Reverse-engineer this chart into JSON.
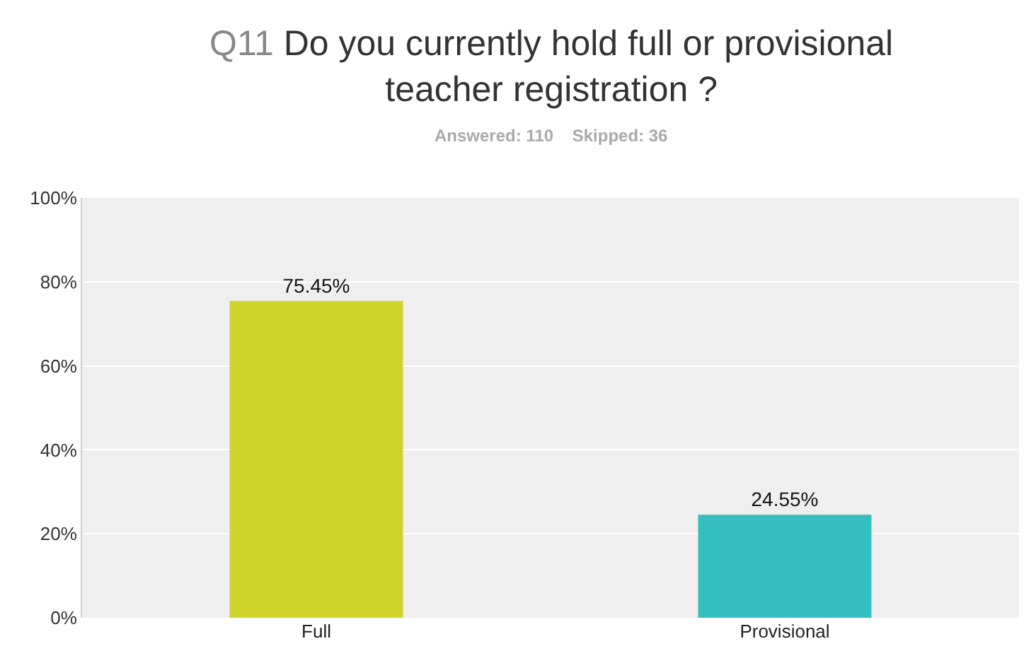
{
  "chart_data": {
    "type": "bar",
    "title": "Q11 Do you currently hold full or provisional teacher registration ?",
    "subtitle": "Answered: 110    Skipped: 36",
    "categories": [
      "Full",
      "Provisional"
    ],
    "values": [
      75.45,
      24.55
    ],
    "colors": [
      "#d0d32a",
      "#33bfc0"
    ],
    "value_labels": [
      "75.45%",
      "24.55%"
    ],
    "ylim": [
      0,
      100
    ],
    "yticks": [
      {
        "value": 0,
        "label": "0%"
      },
      {
        "value": 20,
        "label": "20%"
      },
      {
        "value": 40,
        "label": "40%"
      },
      {
        "value": 60,
        "label": "60%"
      },
      {
        "value": 80,
        "label": "80%"
      },
      {
        "value": 100,
        "label": "100%"
      }
    ],
    "grid": "y"
  }
}
